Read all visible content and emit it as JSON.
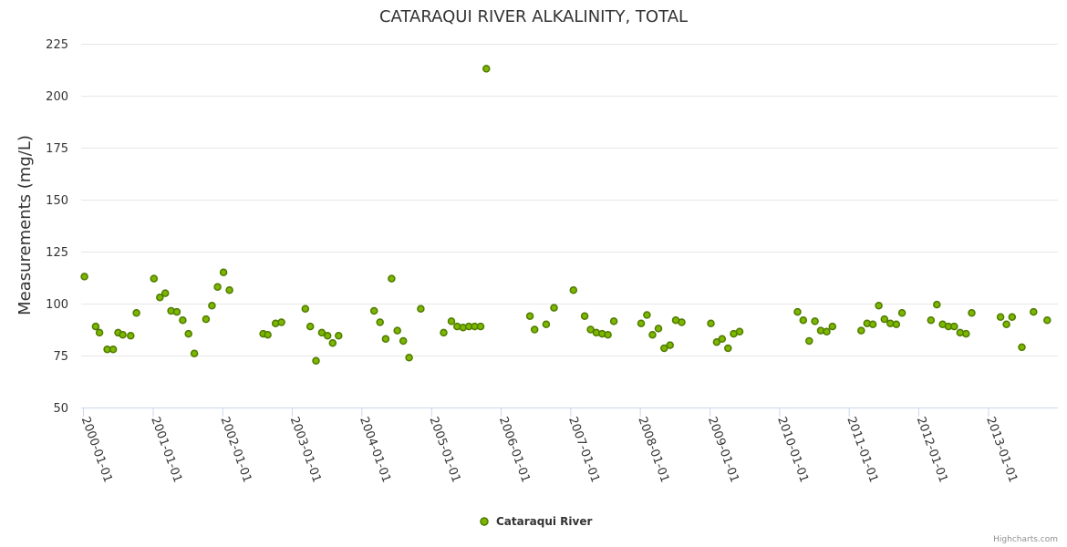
{
  "chart_data": {
    "type": "scatter",
    "title": "CATARAQUI RIVER ALKALINITY, TOTAL",
    "ylabel": "Measurements (mg/L)",
    "xlabel": "",
    "ylim": [
      50,
      225
    ],
    "yticks": [
      50,
      75,
      100,
      125,
      150,
      175,
      200,
      225
    ],
    "xlim": [
      "1999-12-20",
      "2013-12-31"
    ],
    "xticks": [
      "2000-01-01",
      "2001-01-01",
      "2002-01-01",
      "2003-01-01",
      "2004-01-01",
      "2005-01-01",
      "2006-01-01",
      "2007-01-01",
      "2008-01-01",
      "2009-01-01",
      "2010-01-01",
      "2011-01-01",
      "2012-01-01",
      "2013-01-01"
    ],
    "legend_position": "bottom-center",
    "credits": "Highcharts.com",
    "colors": {
      "fill": "#7cb700",
      "stroke": "#4f7a00"
    },
    "series": [
      {
        "name": "Cataraqui River",
        "points": [
          [
            "2000-01-06",
            113
          ],
          [
            "2000-03-05",
            89
          ],
          [
            "2000-03-25",
            86
          ],
          [
            "2000-05-05",
            78
          ],
          [
            "2000-06-05",
            78
          ],
          [
            "2000-07-01",
            86
          ],
          [
            "2000-07-25",
            85
          ],
          [
            "2000-09-05",
            84.5
          ],
          [
            "2000-10-05",
            95.5
          ],
          [
            "2001-01-05",
            112
          ],
          [
            "2001-02-05",
            103
          ],
          [
            "2001-03-05",
            105
          ],
          [
            "2001-04-05",
            96.5
          ],
          [
            "2001-05-05",
            96
          ],
          [
            "2001-06-05",
            92
          ],
          [
            "2001-07-05",
            85.5
          ],
          [
            "2001-08-05",
            76
          ],
          [
            "2001-10-05",
            92.5
          ],
          [
            "2001-11-05",
            99
          ],
          [
            "2001-12-05",
            108
          ],
          [
            "2002-01-05",
            115
          ],
          [
            "2002-02-05",
            106.5
          ],
          [
            "2002-08-01",
            85.5
          ],
          [
            "2002-08-25",
            85
          ],
          [
            "2002-10-05",
            90.5
          ],
          [
            "2002-11-05",
            91
          ],
          [
            "2003-03-10",
            97.5
          ],
          [
            "2003-04-05",
            89
          ],
          [
            "2003-05-05",
            72.5
          ],
          [
            "2003-06-05",
            86
          ],
          [
            "2003-07-05",
            84.5
          ],
          [
            "2003-08-01",
            81
          ],
          [
            "2003-09-01",
            84.5
          ],
          [
            "2004-03-05",
            96.5
          ],
          [
            "2004-04-05",
            91
          ],
          [
            "2004-05-05",
            83
          ],
          [
            "2004-06-05",
            112
          ],
          [
            "2004-07-05",
            87
          ],
          [
            "2004-08-05",
            82
          ],
          [
            "2004-09-05",
            74
          ],
          [
            "2004-11-05",
            97.5
          ],
          [
            "2005-03-05",
            86
          ],
          [
            "2005-04-15",
            91.5
          ],
          [
            "2005-05-15",
            89
          ],
          [
            "2005-06-15",
            88.5
          ],
          [
            "2005-07-15",
            89
          ],
          [
            "2005-08-15",
            89
          ],
          [
            "2005-09-15",
            89
          ],
          [
            "2005-10-15",
            213
          ],
          [
            "2006-06-01",
            94
          ],
          [
            "2006-06-25",
            87.5
          ],
          [
            "2006-08-25",
            90
          ],
          [
            "2006-10-05",
            98
          ],
          [
            "2007-01-15",
            106.5
          ],
          [
            "2007-03-15",
            94
          ],
          [
            "2007-04-15",
            87.5
          ],
          [
            "2007-05-15",
            86
          ],
          [
            "2007-06-15",
            85.5
          ],
          [
            "2007-07-15",
            85
          ],
          [
            "2007-08-15",
            91.5
          ],
          [
            "2008-01-05",
            90.5
          ],
          [
            "2008-02-05",
            94.5
          ],
          [
            "2008-03-05",
            85
          ],
          [
            "2008-04-05",
            88
          ],
          [
            "2008-05-05",
            78.5
          ],
          [
            "2008-06-05",
            80
          ],
          [
            "2008-07-05",
            92
          ],
          [
            "2008-08-05",
            91
          ],
          [
            "2009-01-05",
            90.5
          ],
          [
            "2009-02-05",
            81.5
          ],
          [
            "2009-03-05",
            83
          ],
          [
            "2009-04-05",
            78.5
          ],
          [
            "2009-05-05",
            85.5
          ],
          [
            "2009-06-05",
            86.5
          ],
          [
            "2010-04-05",
            96
          ],
          [
            "2010-05-05",
            92
          ],
          [
            "2010-06-05",
            82
          ],
          [
            "2010-07-05",
            91.5
          ],
          [
            "2010-08-05",
            87
          ],
          [
            "2010-09-05",
            86.5
          ],
          [
            "2010-10-05",
            89
          ],
          [
            "2011-03-05",
            87
          ],
          [
            "2011-04-05",
            90.5
          ],
          [
            "2011-05-05",
            90
          ],
          [
            "2011-06-05",
            99
          ],
          [
            "2011-07-05",
            92.5
          ],
          [
            "2011-08-05",
            90.5
          ],
          [
            "2011-09-05",
            90
          ],
          [
            "2011-10-05",
            95.5
          ],
          [
            "2012-03-05",
            92
          ],
          [
            "2012-04-05",
            99.5
          ],
          [
            "2012-05-05",
            90
          ],
          [
            "2012-06-05",
            89
          ],
          [
            "2012-07-05",
            89
          ],
          [
            "2012-08-05",
            86
          ],
          [
            "2012-09-05",
            85.5
          ],
          [
            "2012-10-05",
            95.5
          ],
          [
            "2013-03-05",
            93.5
          ],
          [
            "2013-04-05",
            90
          ],
          [
            "2013-05-05",
            93.5
          ],
          [
            "2013-06-25",
            79
          ],
          [
            "2013-08-25",
            96
          ],
          [
            "2013-11-05",
            92
          ]
        ]
      }
    ]
  }
}
